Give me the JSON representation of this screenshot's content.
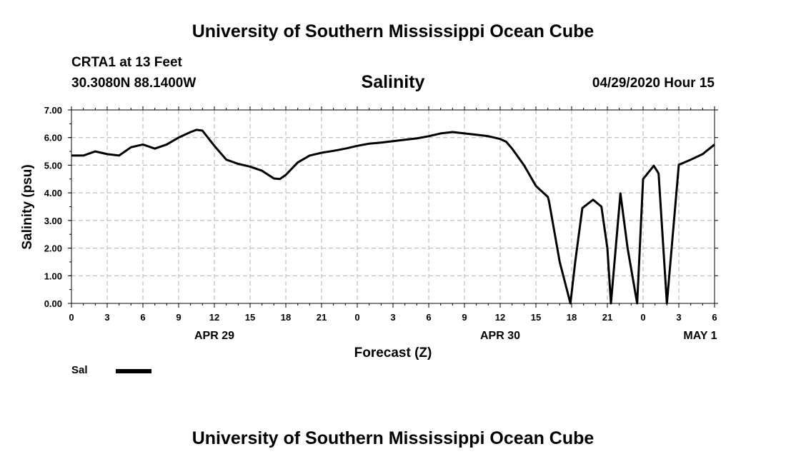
{
  "page": {
    "header_title": "University of Southern Mississippi Ocean Cube",
    "footer_title": "University of Southern Mississippi Ocean Cube",
    "station": "CRTA1 at 13 Feet",
    "coordinates": "30.3080N 88.1400W",
    "run_time": "04/29/2020 Hour 15"
  },
  "chart_data": {
    "type": "line",
    "title": "Salinity",
    "xlabel": "Forecast (Z)",
    "ylabel": "Salinity (psu)",
    "ylim": [
      0,
      7
    ],
    "yticks": [
      "0.00",
      "1.00",
      "2.00",
      "3.00",
      "4.00",
      "5.00",
      "6.00",
      "7.00"
    ],
    "xlim": [
      0,
      54
    ],
    "xticks": [
      {
        "x": 0,
        "label": "0"
      },
      {
        "x": 3,
        "label": "3"
      },
      {
        "x": 6,
        "label": "6"
      },
      {
        "x": 9,
        "label": "9"
      },
      {
        "x": 12,
        "label": "12"
      },
      {
        "x": 15,
        "label": "15"
      },
      {
        "x": 18,
        "label": "18"
      },
      {
        "x": 21,
        "label": "21"
      },
      {
        "x": 24,
        "label": "0"
      },
      {
        "x": 27,
        "label": "3"
      },
      {
        "x": 30,
        "label": "6"
      },
      {
        "x": 33,
        "label": "9"
      },
      {
        "x": 36,
        "label": "12"
      },
      {
        "x": 39,
        "label": "15"
      },
      {
        "x": 42,
        "label": "18"
      },
      {
        "x": 45,
        "label": "21"
      },
      {
        "x": 48,
        "label": "0"
      },
      {
        "x": 51,
        "label": "3"
      },
      {
        "x": 54,
        "label": "6"
      }
    ],
    "date_labels": [
      {
        "x": 12,
        "label": "APR 29"
      },
      {
        "x": 36,
        "label": "APR 30"
      },
      {
        "x": 52.8,
        "label": "MAY 1"
      }
    ],
    "grid": true,
    "legend": "bottom-left",
    "series": [
      {
        "name": "Sal",
        "color": "#000000",
        "x": [
          0,
          1,
          2,
          3,
          4,
          5,
          6,
          7,
          8,
          9,
          10,
          10.5,
          11,
          12,
          13,
          14,
          15,
          16,
          17,
          17.5,
          18,
          19,
          20,
          21,
          22,
          23,
          24,
          25,
          26,
          27,
          28,
          29,
          30,
          31,
          32,
          33,
          34,
          35,
          36,
          36.5,
          37,
          38,
          39,
          40,
          40.1,
          41,
          41.9,
          42.3,
          42.9,
          43.8,
          44.5,
          45.0,
          45.3,
          46.1,
          46.7,
          47.5,
          48.0,
          48.9,
          49.3,
          50.0,
          51,
          52,
          53,
          54
        ],
        "values": [
          5.35,
          5.35,
          5.5,
          5.4,
          5.35,
          5.65,
          5.75,
          5.6,
          5.75,
          6.0,
          6.2,
          6.28,
          6.25,
          5.7,
          5.2,
          5.05,
          4.95,
          4.8,
          4.52,
          4.5,
          4.65,
          5.1,
          5.35,
          5.45,
          5.52,
          5.6,
          5.7,
          5.78,
          5.82,
          5.87,
          5.92,
          5.97,
          6.05,
          6.15,
          6.2,
          6.15,
          6.1,
          6.05,
          5.95,
          5.85,
          5.6,
          5.0,
          4.25,
          3.85,
          3.7,
          1.5,
          0.0,
          1.5,
          3.45,
          3.75,
          3.5,
          2.0,
          0.0,
          3.98,
          2.0,
          0.0,
          4.5,
          4.98,
          4.7,
          0.0,
          5.02,
          5.2,
          5.4,
          5.75
        ]
      }
    ]
  }
}
